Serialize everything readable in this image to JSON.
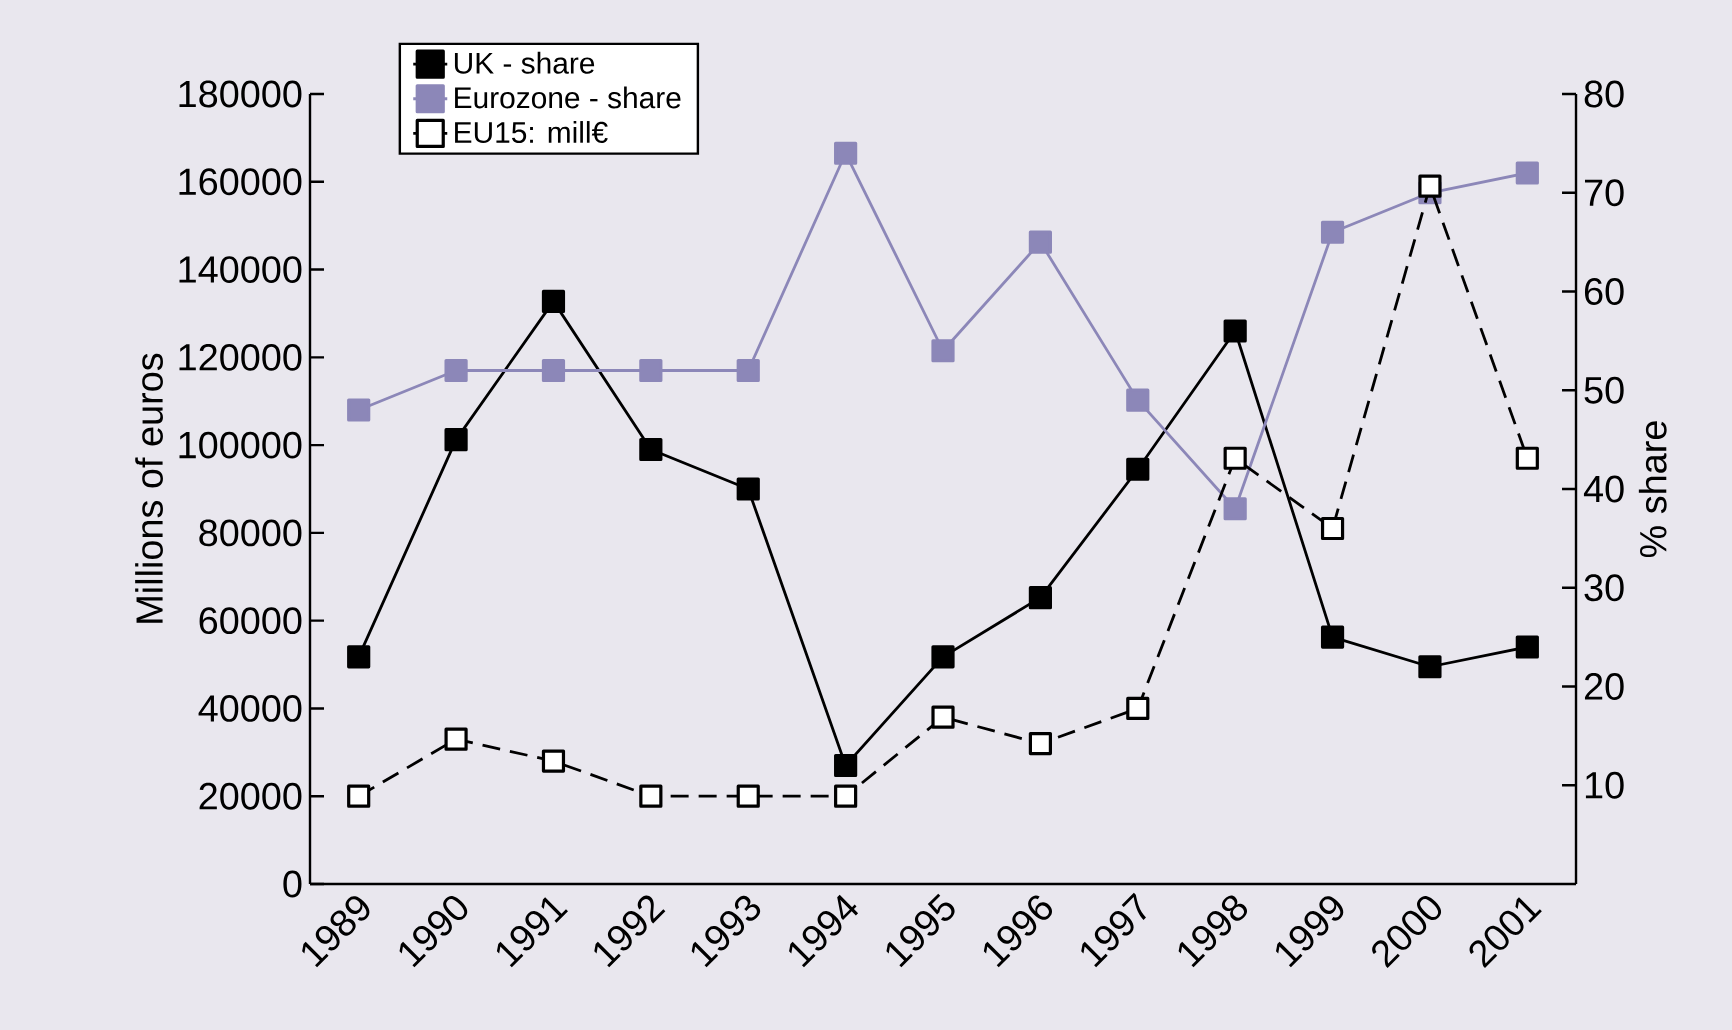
{
  "chart_data": {
    "type": "line",
    "ylabel": "Millions of euros",
    "y2label": "% share",
    "categories": [
      "1989",
      "1990",
      "1991",
      "1992",
      "1993",
      "1994",
      "1995",
      "1996",
      "1997",
      "1998",
      "1999",
      "2000",
      "2001"
    ],
    "series": [
      {
        "name": "UK - share",
        "color": "#000000",
        "axis": "y2",
        "line_style": "solid",
        "values": [
          23,
          45,
          59,
          44,
          40,
          12,
          23,
          29,
          42,
          56,
          25,
          22,
          24
        ]
      },
      {
        "name": "Eurozone - share",
        "color": "#8c87b8",
        "axis": "y2",
        "line_style": "solid",
        "values": [
          48,
          52,
          52,
          52,
          52,
          74,
          54,
          65,
          49,
          38,
          66,
          70,
          72
        ]
      },
      {
        "name": "EU15: mill€",
        "color": "#000000",
        "axis": "y",
        "line_style": "dashed",
        "values": [
          20000,
          33000,
          28000,
          20000,
          20000,
          20000,
          38000,
          32000,
          40000,
          97000,
          81000,
          159000,
          97000
        ]
      }
    ],
    "ylim": [
      0,
      180000
    ],
    "yticks": [
      0,
      20000,
      40000,
      60000,
      80000,
      100000,
      120000,
      140000,
      160000,
      180000
    ],
    "y2lim": [
      0,
      80
    ],
    "y2ticks": [
      10,
      20,
      30,
      40,
      50,
      60,
      70,
      80
    ],
    "marker": "square",
    "legend": "top left"
  }
}
